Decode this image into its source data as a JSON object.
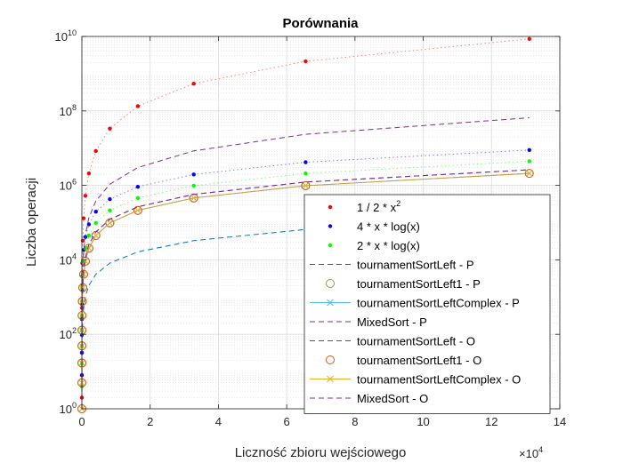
{
  "chart_data": {
    "type": "line",
    "title": "Porównania",
    "xlabel": "Liczność zbioru wejściowego",
    "ylabel": "Liczba operacji",
    "x_multiplier_base": "×10",
    "x_multiplier_exp": "4",
    "x_scale": "linear",
    "y_scale": "log",
    "xlim": [
      0,
      140000
    ],
    "ylim": [
      1,
      10000000000
    ],
    "x_ticks": [
      0,
      20000,
      40000,
      60000,
      80000,
      100000,
      120000,
      140000
    ],
    "x_tick_labels": [
      "0",
      "2",
      "4",
      "6",
      "8",
      "10",
      "12",
      "14"
    ],
    "y_ticks": [
      1,
      100,
      10000,
      1000000,
      100000000,
      10000000000
    ],
    "y_tick_base": "10",
    "y_tick_exps": [
      "0",
      "2",
      "4",
      "6",
      "8",
      "10"
    ],
    "grid": true,
    "minor_grid": true,
    "legend_position": "lower-right",
    "x": [
      2,
      4,
      8,
      16,
      32,
      64,
      128,
      256,
      512,
      1024,
      2048,
      4096,
      8192,
      16384,
      32768,
      65536,
      131072
    ],
    "series": [
      {
        "name": "1 / 2 * x",
        "name_sup": "2",
        "style": "dots",
        "color": "#ff0000",
        "values": [
          2,
          8,
          32,
          128,
          512,
          2048,
          8192,
          32768,
          131072,
          524288,
          2097152,
          8388608,
          33554432,
          134217728,
          536870912,
          2147483648,
          8589934592
        ]
      },
      {
        "name": "4 * x * log(x)",
        "style": "dots",
        "color": "#0000ff",
        "values": [
          8,
          32,
          96,
          256,
          640,
          1536,
          3584,
          8192,
          18432,
          40960,
          90112,
          196608,
          425984,
          917504,
          1966080,
          4194304,
          8912896
        ]
      },
      {
        "name": "2 * x * log(x)",
        "style": "dots",
        "color": "#00ff00",
        "values": [
          4,
          16,
          48,
          128,
          320,
          768,
          1792,
          4096,
          9216,
          20480,
          45056,
          98304,
          212992,
          458752,
          983040,
          2097152,
          4456448
        ]
      },
      {
        "name": "tournamentSortLeft - P",
        "style": "dash",
        "color": "#7e2f8e",
        "values": [
          1,
          5,
          19,
          65,
          209,
          641,
          1921,
          5633,
          16385,
          47105,
          134145,
          380929,
          1073153,
          3014657,
          8437761,
          23560193,
          65634305
        ]
      },
      {
        "name": "tournamentSortLeft1 - P",
        "style": "circle",
        "color": "#77ac30",
        "values": [
          1,
          5,
          17,
          49,
          129,
          321,
          769,
          1793,
          4097,
          9217,
          20481,
          45057,
          98305,
          212993,
          458753,
          983041,
          2097153
        ]
      },
      {
        "name": "tournamentSortLeftComplex - P",
        "style": "cross",
        "color": "#4dbeee",
        "values": [
          1,
          5,
          17,
          49,
          129,
          321,
          769,
          1793,
          4097,
          9217,
          20481,
          45057,
          98305,
          212993,
          458753,
          983041,
          2097153
        ]
      },
      {
        "name": "MixedSort - P",
        "style": "dash",
        "color": "#7e2f8e",
        "values": [
          1,
          6,
          20,
          60,
          160,
          400,
          960,
          2240,
          5120,
          11520,
          25600,
          56320,
          122880,
          266240,
          573440,
          1228800,
          2621440
        ]
      },
      {
        "name": "tournamentSortLeft - O",
        "style": "dash",
        "color": "#0072bd",
        "values": [
          1,
          3,
          7,
          15,
          31,
          63,
          127,
          255,
          511,
          1023,
          2047,
          4095,
          8191,
          16383,
          32767,
          65535,
          131071
        ]
      },
      {
        "name": "tournamentSortLeft1 - O",
        "style": "circle",
        "color": "#d95319",
        "values": [
          1,
          5,
          17,
          49,
          129,
          321,
          769,
          1793,
          4097,
          9217,
          20481,
          45057,
          98305,
          212993,
          458753,
          983041,
          2097153
        ]
      },
      {
        "name": "tournamentSortLeftComplex - O",
        "style": "cross",
        "color": "#edb120",
        "values": [
          1,
          5,
          17,
          49,
          129,
          321,
          769,
          1793,
          4097,
          9217,
          20481,
          45057,
          98305,
          212993,
          458753,
          983041,
          2097153
        ]
      },
      {
        "name": "MixedSort - O",
        "style": "dash",
        "color": "#7e2f8e",
        "values": [
          1,
          6,
          20,
          60,
          160,
          400,
          960,
          2240,
          5120,
          11520,
          25600,
          56320,
          122880,
          266240,
          573440,
          1228800,
          2621440
        ]
      }
    ]
  }
}
